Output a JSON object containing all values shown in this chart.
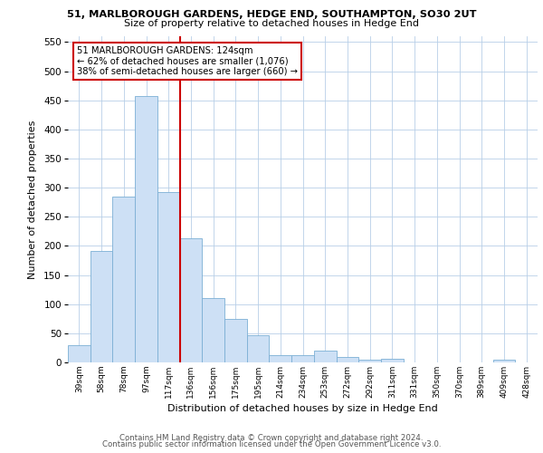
{
  "title1": "51, MARLBOROUGH GARDENS, HEDGE END, SOUTHAMPTON, SO30 2UT",
  "title2": "Size of property relative to detached houses in Hedge End",
  "xlabel": "Distribution of detached houses by size in Hedge End",
  "ylabel": "Number of detached properties",
  "categories": [
    "39sqm",
    "58sqm",
    "78sqm",
    "97sqm",
    "117sqm",
    "136sqm",
    "156sqm",
    "175sqm",
    "195sqm",
    "214sqm",
    "234sqm",
    "253sqm",
    "272sqm",
    "292sqm",
    "311sqm",
    "331sqm",
    "350sqm",
    "370sqm",
    "389sqm",
    "409sqm",
    "428sqm"
  ],
  "values": [
    30,
    192,
    284,
    457,
    292,
    213,
    111,
    75,
    47,
    13,
    13,
    21,
    9,
    5,
    6,
    0,
    0,
    0,
    0,
    5,
    0
  ],
  "bar_color": "#cde0f5",
  "bar_edge_color": "#7bafd4",
  "vline_color": "#cc0000",
  "vline_x_index": 4,
  "annotation_line1": "51 MARLBOROUGH GARDENS: 124sqm",
  "annotation_line2": "← 62% of detached houses are smaller (1,076)",
  "annotation_line3": "38% of semi-detached houses are larger (660) →",
  "annotation_box_color": "#ffffff",
  "annotation_box_edge": "#cc0000",
  "ylim": [
    0,
    560
  ],
  "yticks": [
    0,
    50,
    100,
    150,
    200,
    250,
    300,
    350,
    400,
    450,
    500,
    550
  ],
  "footer1": "Contains HM Land Registry data © Crown copyright and database right 2024.",
  "footer2": "Contains public sector information licensed under the Open Government Licence v3.0.",
  "bg_color": "#ffffff",
  "grid_color": "#b8cfe8"
}
